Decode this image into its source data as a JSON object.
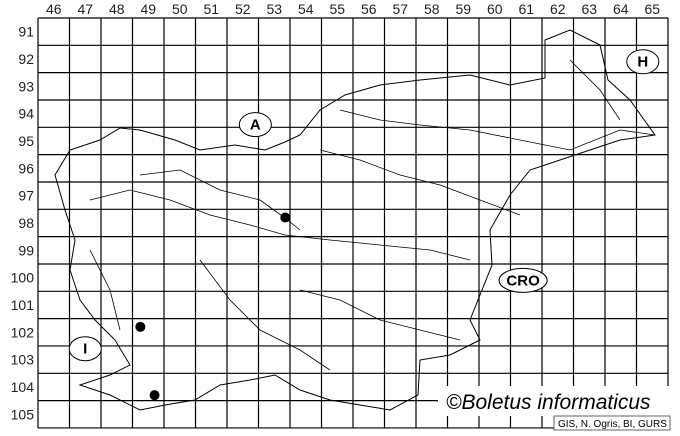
{
  "map": {
    "columns": [
      "46",
      "47",
      "48",
      "49",
      "50",
      "51",
      "52",
      "53",
      "54",
      "55",
      "56",
      "57",
      "58",
      "59",
      "60",
      "61",
      "62",
      "63",
      "64",
      "65"
    ],
    "rows": [
      "91",
      "92",
      "93",
      "94",
      "95",
      "96",
      "97",
      "98",
      "99",
      "100",
      "101",
      "102",
      "103",
      "104",
      "105"
    ],
    "countries": [
      {
        "code": "A",
        "col": 52.9,
        "row": 94.9
      },
      {
        "code": "H",
        "col": 65.2,
        "row": 92.6
      },
      {
        "code": "CRO",
        "col": 61.4,
        "row": 100.6
      },
      {
        "code": "I",
        "col": 47.5,
        "row": 103.1
      }
    ],
    "records": [
      {
        "col": 49.25,
        "row": 102.3
      },
      {
        "col": 49.7,
        "row": 104.8
      },
      {
        "col": 53.85,
        "row": 98.3
      }
    ],
    "credit": "©Boletus informaticus",
    "source": "GIS, N. Ogris, BI, GURS",
    "line_color": "#000000",
    "dot_color": "#000000"
  }
}
